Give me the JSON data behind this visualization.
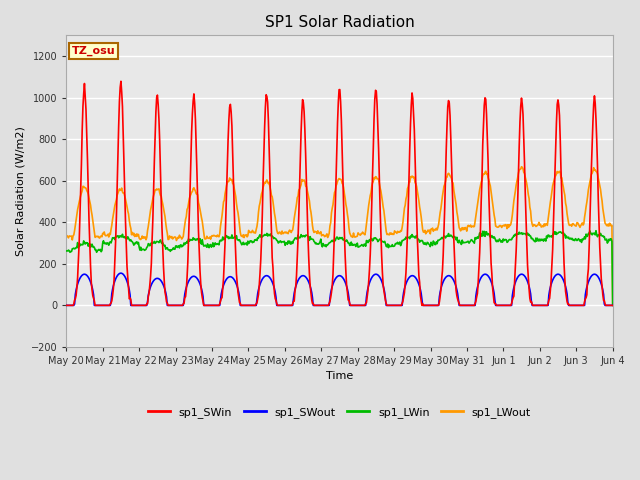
{
  "title": "SP1 Solar Radiation",
  "ylabel": "Solar Radiation (W/m2)",
  "xlabel": "Time",
  "ylim": [
    -200,
    1300
  ],
  "n_days": 15,
  "tz_label": "TZ_osu",
  "background_color": "#e0e0e0",
  "plot_bg_color": "#e8e8e8",
  "grid_color": "#ffffff",
  "x_tick_labels": [
    "May 20",
    "May 21",
    "May 22",
    "May 23",
    "May 24",
    "May 25",
    "May 26",
    "May 27",
    "May 28",
    "May 29",
    "May 30",
    "May 31",
    "Jun 1",
    "Jun 2",
    "Jun 3",
    "Jun 4"
  ],
  "legend_entries": [
    "sp1_SWin",
    "sp1_SWout",
    "sp1_LWin",
    "sp1_LWout"
  ],
  "legend_colors": [
    "#ff0000",
    "#0000ff",
    "#00bb00",
    "#ff9900"
  ],
  "sw_in_peak": [
    1050,
    1070,
    1010,
    1010,
    970,
    1025,
    990,
    1040,
    1040,
    1010,
    990,
    1000,
    1000,
    990,
    1000
  ],
  "sw_out_peak": [
    150,
    155,
    130,
    140,
    138,
    143,
    143,
    143,
    150,
    143,
    143,
    150,
    150,
    150,
    150
  ],
  "lw_in_base": [
    265,
    300,
    270,
    285,
    295,
    305,
    300,
    290,
    285,
    295,
    300,
    310,
    315,
    315,
    315
  ],
  "lw_out_base": [
    330,
    340,
    325,
    325,
    335,
    350,
    350,
    335,
    345,
    355,
    365,
    380,
    385,
    385,
    390
  ],
  "lw_out_peak": [
    570,
    560,
    560,
    560,
    610,
    600,
    600,
    610,
    620,
    620,
    630,
    640,
    660,
    645,
    655
  ]
}
